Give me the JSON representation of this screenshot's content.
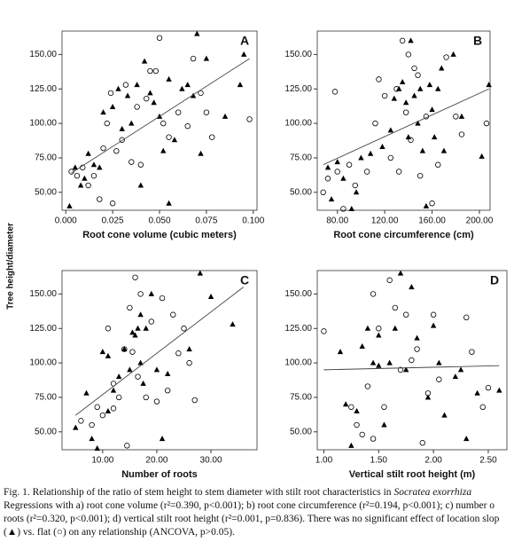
{
  "y_axis_label": "Tree height/diameter",
  "chart_data": [
    {
      "type": "scatter",
      "label": "A",
      "x_label": "Root cone volume (cubic meters)",
      "xlim": [
        -0.002,
        0.102
      ],
      "xticks": [
        {
          "value": 0,
          "label": "0.000"
        },
        {
          "value": 0.025,
          "label": "0.025"
        },
        {
          "value": 0.05,
          "label": "0.050"
        },
        {
          "value": 0.075,
          "label": "0.075"
        },
        {
          "value": 0.1,
          "label": "0.100"
        }
      ],
      "ylim": [
        37,
        167
      ],
      "yticks": [
        {
          "value": 50,
          "label": "50.00"
        },
        {
          "value": 75,
          "label": "75.00"
        },
        {
          "value": 100,
          "label": "100.00"
        },
        {
          "value": 125,
          "label": "125.00"
        },
        {
          "value": 150,
          "label": "150.00"
        }
      ],
      "series": [
        {
          "marker": "triangle",
          "color": "#000000",
          "x": [
            0.002,
            0.008,
            0.01,
            0.012,
            0.015,
            0.018,
            0.02,
            0.025,
            0.028,
            0.03,
            0.033,
            0.035,
            0.038,
            0.04,
            0.042,
            0.045,
            0.047,
            0.05,
            0.052,
            0.055,
            0.058,
            0.062,
            0.065,
            0.068,
            0.07,
            0.072,
            0.075,
            0.085,
            0.093,
            0.095,
            0.055,
            0.005
          ],
          "values": [
            40,
            55,
            60,
            78,
            70,
            68,
            108,
            112,
            125,
            96,
            120,
            100,
            128,
            55,
            145,
            122,
            115,
            105,
            80,
            132,
            88,
            125,
            128,
            120,
            165,
            78,
            147,
            105,
            128,
            150,
            42,
            68
          ]
        },
        {
          "marker": "circle",
          "color": "#000000",
          "x": [
            0.003,
            0.006,
            0.009,
            0.012,
            0.015,
            0.018,
            0.02,
            0.022,
            0.024,
            0.027,
            0.03,
            0.032,
            0.035,
            0.038,
            0.04,
            0.043,
            0.045,
            0.048,
            0.05,
            0.052,
            0.055,
            0.06,
            0.065,
            0.068,
            0.072,
            0.075,
            0.078,
            0.098,
            0.025
          ],
          "values": [
            65,
            62,
            68,
            55,
            62,
            45,
            82,
            100,
            122,
            80,
            88,
            128,
            72,
            112,
            70,
            118,
            138,
            138,
            162,
            100,
            90,
            108,
            98,
            147,
            122,
            108,
            90,
            103,
            42
          ]
        }
      ],
      "trendline": {
        "x": [
          0.003,
          0.098
        ],
        "values": [
          64,
          147
        ]
      }
    },
    {
      "type": "scatter",
      "label": "B",
      "x_label": "Root cone circumference (cm)",
      "xlim": [
        63,
        209
      ],
      "xticks": [
        {
          "value": 80,
          "label": "80.00"
        },
        {
          "value": 120,
          "label": "120.00"
        },
        {
          "value": 160,
          "label": "160.00"
        },
        {
          "value": 200,
          "label": "200.00"
        }
      ],
      "ylim": [
        37,
        167
      ],
      "yticks": [
        {
          "value": 50,
          "label": "50.00"
        },
        {
          "value": 75,
          "label": "75.00"
        },
        {
          "value": 100,
          "label": "100.00"
        },
        {
          "value": 125,
          "label": "125.00"
        },
        {
          "value": 150,
          "label": "150.00"
        }
      ],
      "series": [
        {
          "marker": "triangle",
          "color": "#000000",
          "x": [
            72,
            75,
            80,
            85,
            92,
            96,
            100,
            108,
            118,
            125,
            128,
            132,
            135,
            138,
            140,
            142,
            145,
            148,
            150,
            152,
            155,
            158,
            160,
            162,
            165,
            168,
            170,
            178,
            185,
            202,
            208
          ],
          "values": [
            68,
            45,
            72,
            60,
            38,
            50,
            75,
            78,
            83,
            95,
            118,
            125,
            130,
            115,
            90,
            160,
            120,
            100,
            125,
            80,
            40,
            128,
            110,
            90,
            125,
            140,
            80,
            150,
            105,
            76,
            128
          ]
        },
        {
          "marker": "circle",
          "color": "#000000",
          "x": [
            68,
            72,
            78,
            80,
            85,
            90,
            95,
            105,
            112,
            115,
            120,
            125,
            130,
            132,
            135,
            138,
            140,
            142,
            145,
            148,
            150,
            155,
            160,
            165,
            172,
            180,
            185,
            206
          ],
          "values": [
            50,
            60,
            123,
            65,
            38,
            70,
            55,
            65,
            100,
            132,
            120,
            75,
            125,
            65,
            160,
            108,
            150,
            88,
            140,
            135,
            62,
            105,
            42,
            70,
            148,
            105,
            92,
            100
          ]
        }
      ],
      "trendline": {
        "x": [
          68,
          208
        ],
        "values": [
          70,
          125
        ]
      }
    },
    {
      "type": "scatter",
      "label": "C",
      "x_label": "Number of roots",
      "xlim": [
        2.5,
        38.5
      ],
      "xticks": [
        {
          "value": 10,
          "label": "10.00"
        },
        {
          "value": 20,
          "label": "20.00"
        },
        {
          "value": 30,
          "label": "30.00"
        }
      ],
      "ylim": [
        37,
        167
      ],
      "yticks": [
        {
          "value": 50,
          "label": "50.00"
        },
        {
          "value": 75,
          "label": "75.00"
        },
        {
          "value": 100,
          "label": "100.00"
        },
        {
          "value": 125,
          "label": "125.00"
        },
        {
          "value": 150,
          "label": "150.00"
        }
      ],
      "series": [
        {
          "marker": "triangle",
          "color": "#000000",
          "x": [
            5,
            7,
            8,
            9,
            10,
            11,
            12,
            13,
            14,
            15,
            15.5,
            16,
            16.5,
            17,
            17.5,
            18,
            19,
            20,
            21,
            22,
            26,
            28,
            30,
            34,
            11,
            17
          ],
          "values": [
            53,
            78,
            45,
            38,
            108,
            65,
            80,
            90,
            110,
            95,
            122,
            120,
            125,
            135,
            85,
            125,
            150,
            95,
            45,
            92,
            110,
            165,
            148,
            128,
            105,
            100
          ]
        },
        {
          "marker": "circle",
          "color": "#000000",
          "x": [
            6,
            8,
            9,
            10,
            11,
            12,
            13,
            14,
            14.5,
            15,
            15.5,
            16,
            16.5,
            17,
            18,
            19,
            20,
            21,
            22,
            23,
            24,
            25,
            26,
            27,
            12
          ],
          "values": [
            58,
            55,
            68,
            62,
            125,
            67,
            75,
            110,
            40,
            140,
            108,
            162,
            90,
            150,
            75,
            130,
            72,
            147,
            80,
            135,
            107,
            125,
            100,
            73,
            85
          ]
        }
      ],
      "trendline": {
        "x": [
          5,
          36
        ],
        "values": [
          62,
          155
        ]
      }
    },
    {
      "type": "scatter",
      "label": "D",
      "x_label": "Vertical stilt root height (m)",
      "xlim": [
        0.94,
        2.67
      ],
      "xticks": [
        {
          "value": 1,
          "label": "1.00"
        },
        {
          "value": 1.5,
          "label": "1.50"
        },
        {
          "value": 2,
          "label": "2.00"
        },
        {
          "value": 2.5,
          "label": "2.50"
        }
      ],
      "ylim": [
        37,
        167
      ],
      "yticks": [
        {
          "value": 50,
          "label": "50.00"
        },
        {
          "value": 75,
          "label": "75.00"
        },
        {
          "value": 100,
          "label": "100.00"
        },
        {
          "value": 125,
          "label": "125.00"
        },
        {
          "value": 150,
          "label": "150.00"
        }
      ],
      "series": [
        {
          "marker": "triangle",
          "color": "#000000",
          "x": [
            1.15,
            1.2,
            1.25,
            1.3,
            1.35,
            1.4,
            1.45,
            1.5,
            1.55,
            1.6,
            1.65,
            1.7,
            1.75,
            1.8,
            1.85,
            1.95,
            2.0,
            2.05,
            2.1,
            2.2,
            2.25,
            2.3,
            2.4,
            2.6,
            1.5
          ],
          "values": [
            108,
            70,
            40,
            65,
            112,
            125,
            100,
            120,
            55,
            100,
            125,
            165,
            95,
            155,
            118,
            75,
            127,
            100,
            62,
            90,
            95,
            45,
            78,
            80,
            98
          ]
        },
        {
          "marker": "circle",
          "color": "#000000",
          "x": [
            1.0,
            1.25,
            1.3,
            1.35,
            1.4,
            1.45,
            1.5,
            1.55,
            1.6,
            1.65,
            1.7,
            1.75,
            1.8,
            1.85,
            1.9,
            1.95,
            2.0,
            2.05,
            2.3,
            2.35,
            2.5,
            2.45,
            1.45
          ],
          "values": [
            123,
            68,
            55,
            48,
            83,
            150,
            125,
            68,
            160,
            140,
            95,
            135,
            102,
            110,
            42,
            78,
            135,
            88,
            133,
            108,
            82,
            68,
            45
          ]
        }
      ],
      "trendline": {
        "x": [
          1.0,
          2.6
        ],
        "values": [
          95,
          98
        ]
      }
    }
  ],
  "caption": {
    "line1": "Fig. 1. Relationship of the ratio of stem height to stem diameter with stilt root characteristics in",
    "species": "Socratea exorrhiza",
    "line2": "Regressions with a) root cone volume (r²=0.390, p<0.001); b) root cone circumference (r²=0.194, p<0.001); c) number o",
    "line3": "roots (r²=0.320, p<0.001); d) vertical stilt root height (r²=0.001, p=0.836). There was no significant effect of location slop",
    "line4": "(▲) vs. flat (○) on any relationship (ANCOVA, p>0.05)."
  }
}
